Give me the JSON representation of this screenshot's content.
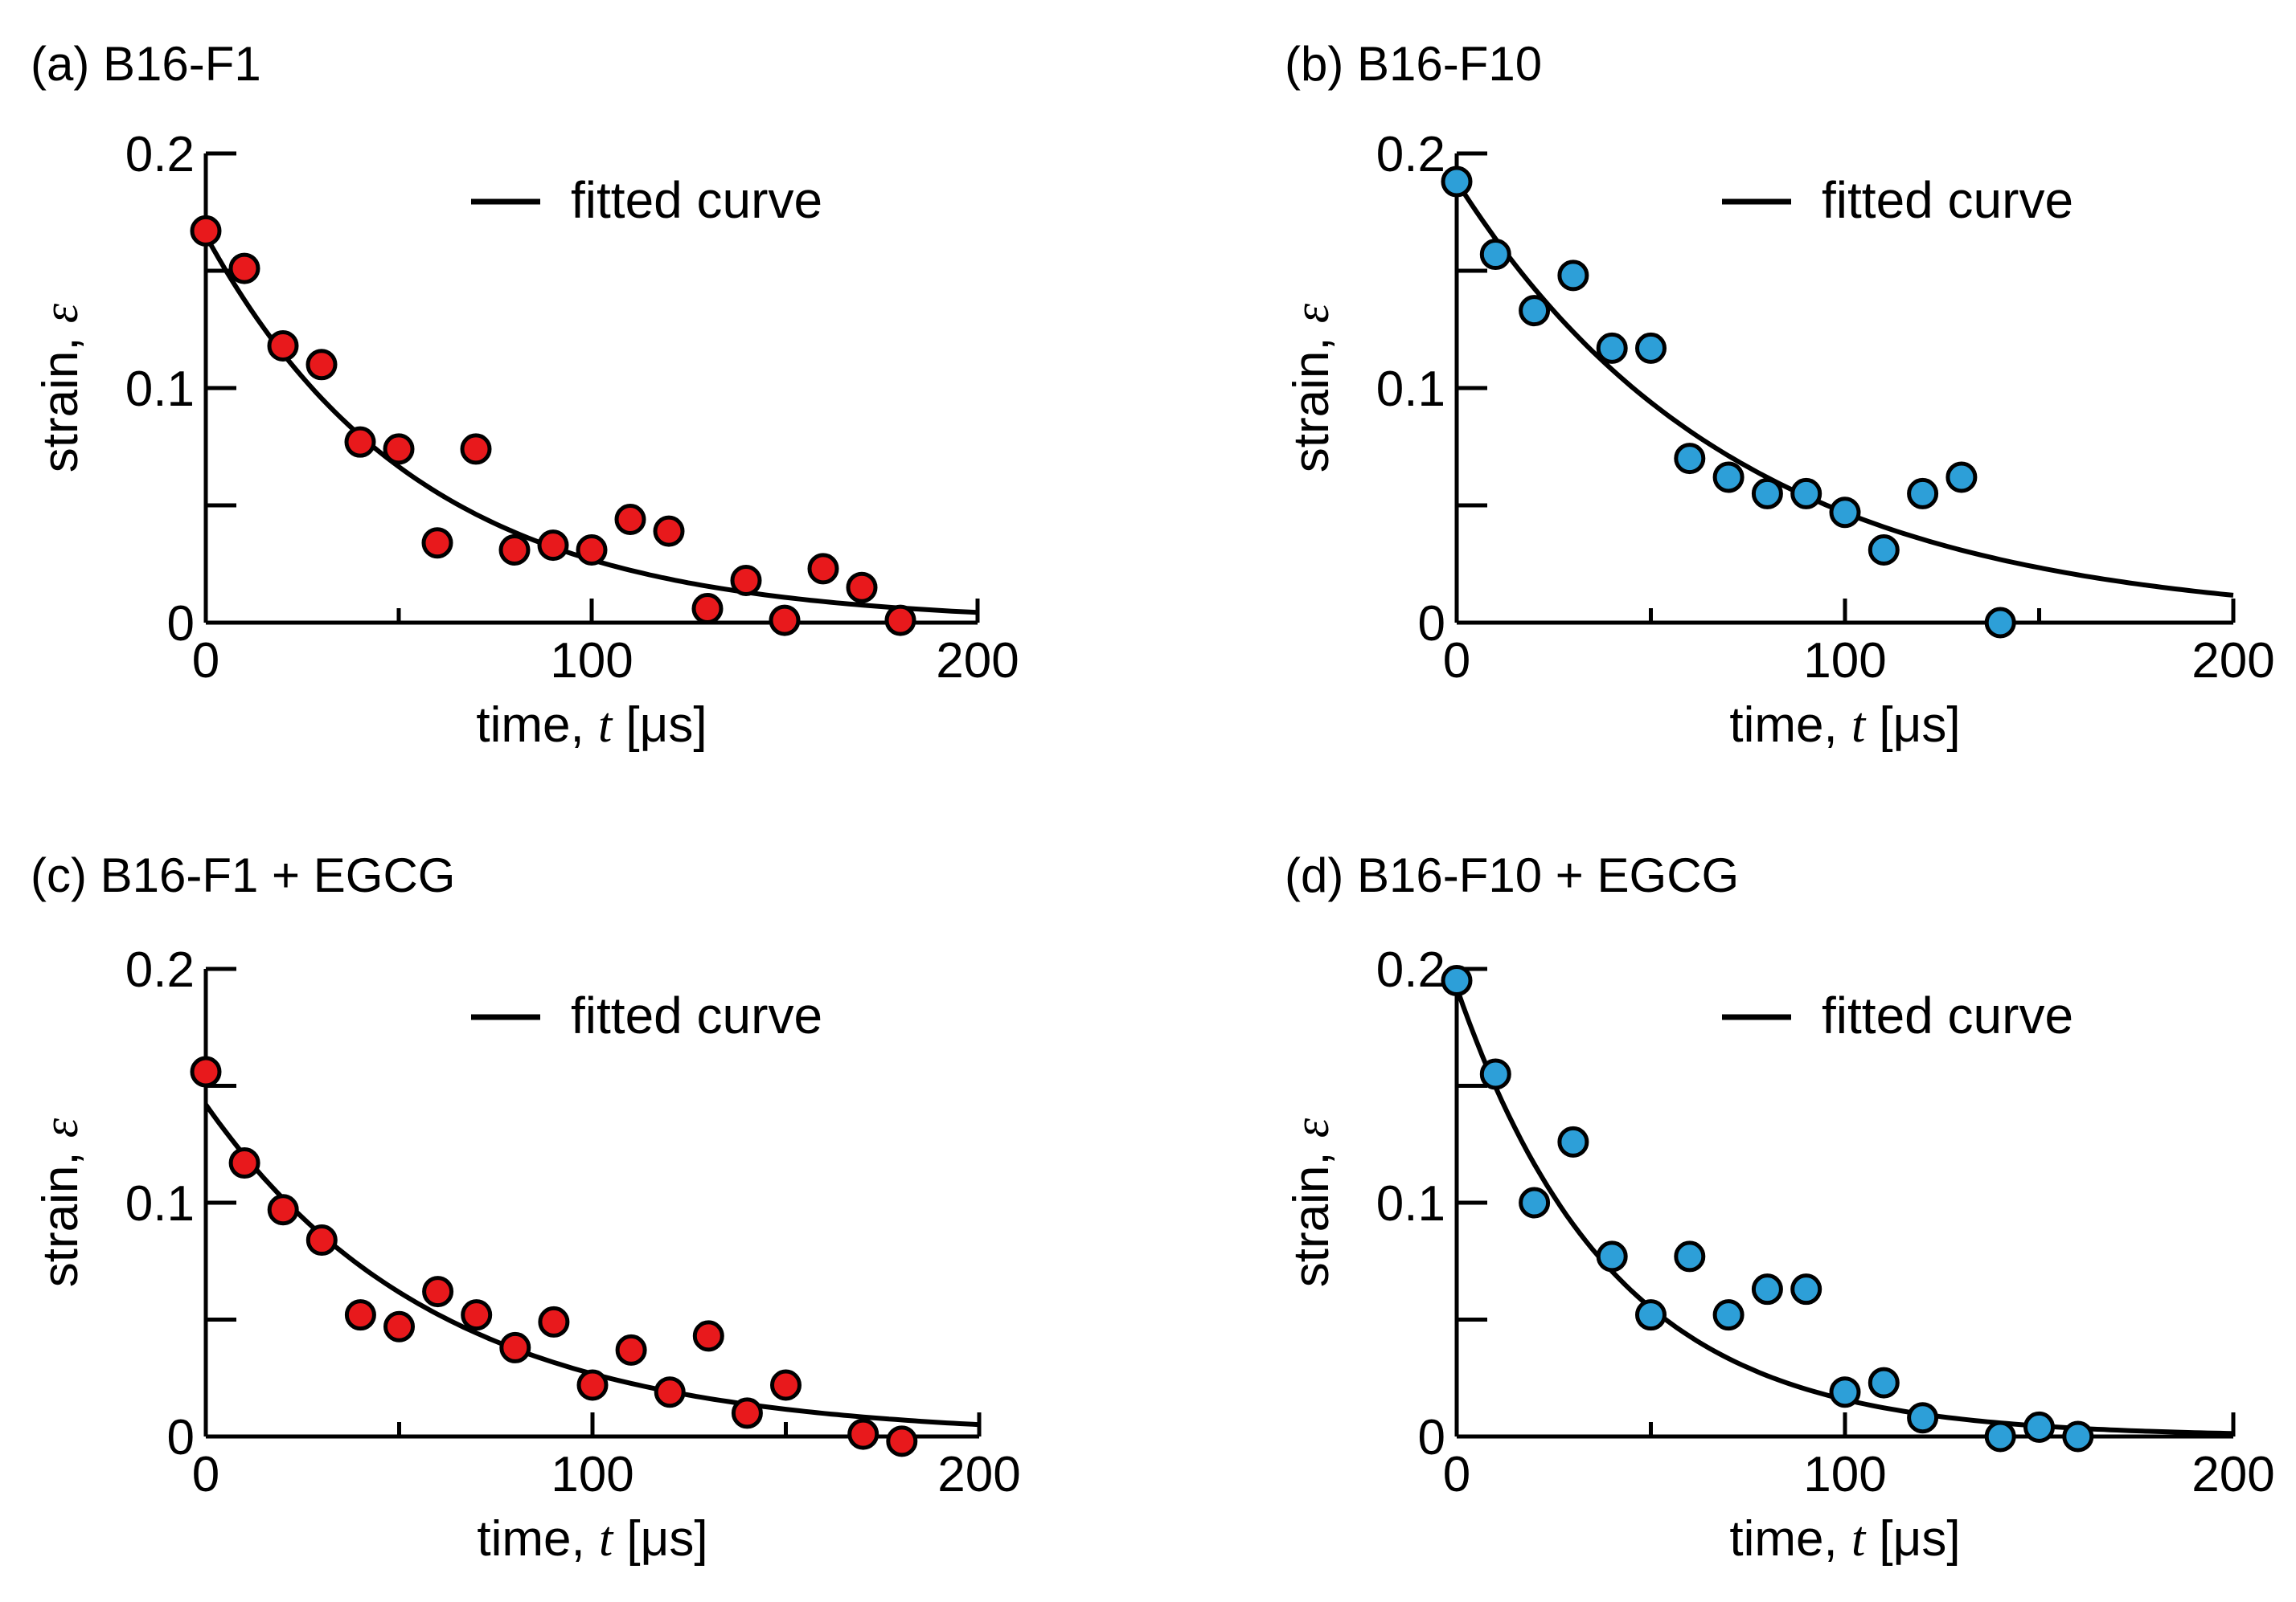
{
  "figure": {
    "colors": {
      "red": "#e8191c",
      "blue": "#2d9fd8",
      "line": "#000000"
    }
  },
  "chart_data": [
    {
      "id": "a",
      "type": "scatter",
      "title": "(a) B16-F1",
      "xlabel": {
        "prefix": "time, ",
        "var": "t",
        "suffix": " [μs]"
      },
      "ylabel": {
        "prefix": "strain, ",
        "var": "ε"
      },
      "xlim": [
        0,
        200
      ],
      "ylim": [
        0,
        0.2
      ],
      "xticks": [
        0,
        100,
        200
      ],
      "xtick_labels": [
        "0",
        "100",
        "200"
      ],
      "yticks": [
        0,
        0.1,
        0.2
      ],
      "ytick_labels": [
        "0",
        "0.1",
        "0.2"
      ],
      "legend": {
        "label": "fitted curve",
        "position": "top-right"
      },
      "marker_color": "#e8191c",
      "series": [
        {
          "name": "data",
          "x": [
            0,
            10,
            20,
            30,
            40,
            50,
            60,
            70,
            80,
            90,
            100,
            110,
            120,
            130,
            140,
            150,
            160,
            170,
            180
          ],
          "y": [
            0.167,
            0.151,
            0.118,
            0.11,
            0.077,
            0.074,
            0.034,
            0.074,
            0.031,
            0.033,
            0.031,
            0.044,
            0.039,
            0.006,
            0.018,
            0.001,
            0.023,
            0.015,
            0.001
          ]
        }
      ],
      "fit": {
        "name": "fitted curve",
        "a": 0.165,
        "tau": 55,
        "x_max": 200
      }
    },
    {
      "id": "b",
      "type": "scatter",
      "title": "(b) B16-F10",
      "xlabel": {
        "prefix": "time, ",
        "var": "t",
        "suffix": " [μs]"
      },
      "ylabel": {
        "prefix": "strain, ",
        "var": "ε"
      },
      "xlim": [
        0,
        200
      ],
      "ylim": [
        0,
        0.2
      ],
      "xticks": [
        0,
        100,
        200
      ],
      "xtick_labels": [
        "0",
        "100",
        "200"
      ],
      "yticks": [
        0,
        0.1,
        0.2
      ],
      "ytick_labels": [
        "0",
        "0.1",
        "0.2"
      ],
      "legend": {
        "label": "fitted curve",
        "position": "top-right"
      },
      "marker_color": "#2d9fd8",
      "series": [
        {
          "name": "data",
          "x": [
            0,
            10,
            20,
            30,
            40,
            50,
            60,
            70,
            80,
            90,
            100,
            110,
            120,
            130,
            140
          ],
          "y": [
            0.188,
            0.157,
            0.133,
            0.148,
            0.117,
            0.117,
            0.07,
            0.062,
            0.055,
            0.055,
            0.047,
            0.031,
            0.055,
            0.062,
            0.0
          ]
        }
      ],
      "fit": {
        "name": "fitted curve",
        "a": 0.188,
        "tau": 72,
        "x_max": 200
      }
    },
    {
      "id": "c",
      "type": "scatter",
      "title": "(c) B16-F1 + EGCG",
      "xlabel": {
        "prefix": "time, ",
        "var": "t",
        "suffix": " [μs]"
      },
      "ylabel": {
        "prefix": "strain, ",
        "var": "ε"
      },
      "xlim": [
        0,
        200
      ],
      "ylim": [
        0,
        0.2
      ],
      "xticks": [
        0,
        100,
        200
      ],
      "xtick_labels": [
        "0",
        "100",
        "200"
      ],
      "yticks": [
        0,
        0.1,
        0.2
      ],
      "ytick_labels": [
        "0",
        "0.1",
        "0.2"
      ],
      "legend": {
        "label": "fitted curve",
        "position": "top-right"
      },
      "marker_color": "#e8191c",
      "series": [
        {
          "name": "data",
          "x": [
            0,
            10,
            20,
            30,
            40,
            50,
            60,
            70,
            80,
            90,
            100,
            110,
            120,
            130,
            140,
            150,
            170,
            180
          ],
          "y": [
            0.156,
            0.117,
            0.097,
            0.084,
            0.052,
            0.047,
            0.062,
            0.052,
            0.038,
            0.049,
            0.022,
            0.037,
            0.019,
            0.043,
            0.01,
            0.022,
            0.001,
            -0.002
          ]
        }
      ],
      "fit": {
        "name": "fitted curve",
        "a": 0.142,
        "tau": 60,
        "x_max": 200
      }
    },
    {
      "id": "d",
      "type": "scatter",
      "title": "(d) B16-F10 + EGCG",
      "xlabel": {
        "prefix": "time, ",
        "var": "t",
        "suffix": " [μs]"
      },
      "ylabel": {
        "prefix": "strain, ",
        "var": "ε"
      },
      "xlim": [
        0,
        200
      ],
      "ylim": [
        0,
        0.2
      ],
      "xticks": [
        0,
        100,
        200
      ],
      "xtick_labels": [
        "0",
        "100",
        "200"
      ],
      "yticks": [
        0,
        0.1,
        0.2
      ],
      "ytick_labels": [
        "0",
        "0.1",
        "0.2"
      ],
      "legend": {
        "label": "fitted curve",
        "position": "top-right"
      },
      "marker_color": "#2d9fd8",
      "series": [
        {
          "name": "data",
          "x": [
            0,
            10,
            20,
            30,
            40,
            50,
            60,
            70,
            80,
            90,
            100,
            110,
            120,
            140,
            150,
            160
          ],
          "y": [
            0.195,
            0.155,
            0.1,
            0.126,
            0.077,
            0.052,
            0.077,
            0.052,
            0.063,
            0.063,
            0.019,
            0.023,
            0.008,
            0.0,
            0.004,
            0.0
          ]
        }
      ],
      "fit": {
        "name": "fitted curve",
        "a": 0.192,
        "tau": 40,
        "x_max": 200
      }
    }
  ]
}
